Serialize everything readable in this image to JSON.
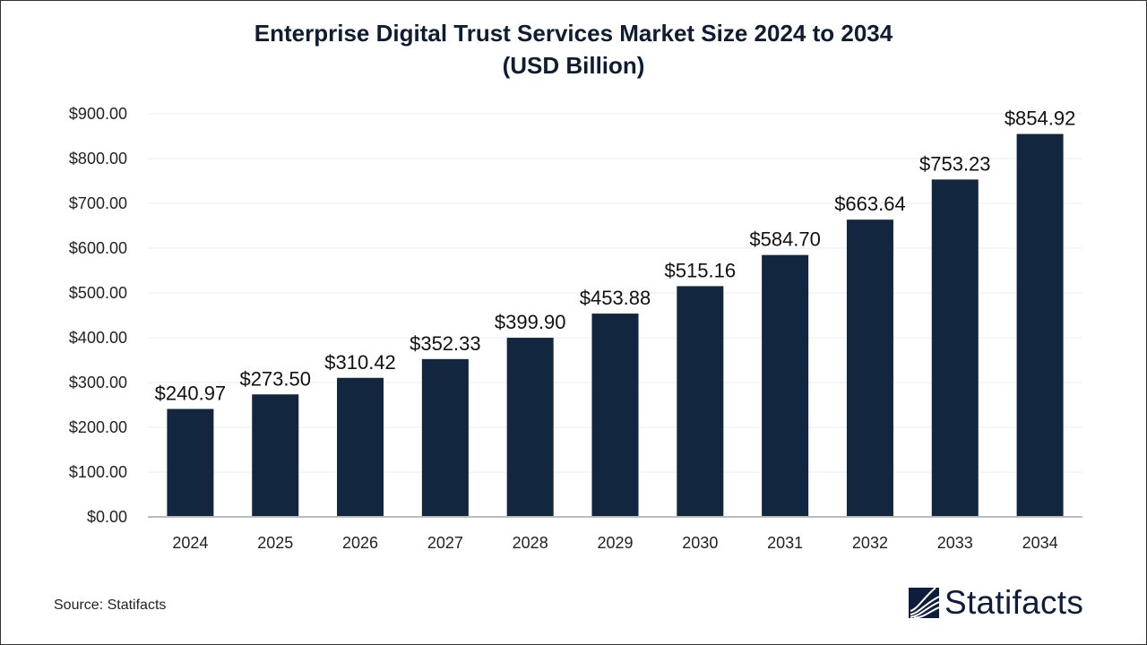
{
  "chart_data": {
    "type": "bar",
    "title": "Enterprise Digital Trust Services Market Size 2024 to 2034",
    "subtitle": "(USD Billion)",
    "categories": [
      "2024",
      "2025",
      "2026",
      "2027",
      "2028",
      "2029",
      "2030",
      "2031",
      "2032",
      "2033",
      "2034"
    ],
    "values": [
      240.97,
      273.5,
      310.42,
      352.33,
      399.9,
      453.88,
      515.16,
      584.7,
      663.64,
      753.23,
      854.92
    ],
    "data_labels": [
      "$240.97",
      "$273.50",
      "$310.42",
      "$352.33",
      "$399.90",
      "$453.88",
      "$515.16",
      "$584.70",
      "$663.64",
      "$753.23",
      "$854.92"
    ],
    "yticks": [
      "$0.00",
      "$100.00",
      "$200.00",
      "$300.00",
      "$400.00",
      "$500.00",
      "$600.00",
      "$700.00",
      "$800.00",
      "$900.00"
    ],
    "ylim": [
      0,
      900
    ],
    "grid": true,
    "bar_color": "#12263f",
    "xlabel": "",
    "ylabel": ""
  },
  "source": "Source: Statifacts",
  "logo": {
    "text": "Statifacts",
    "color": "#0f1d3d"
  }
}
